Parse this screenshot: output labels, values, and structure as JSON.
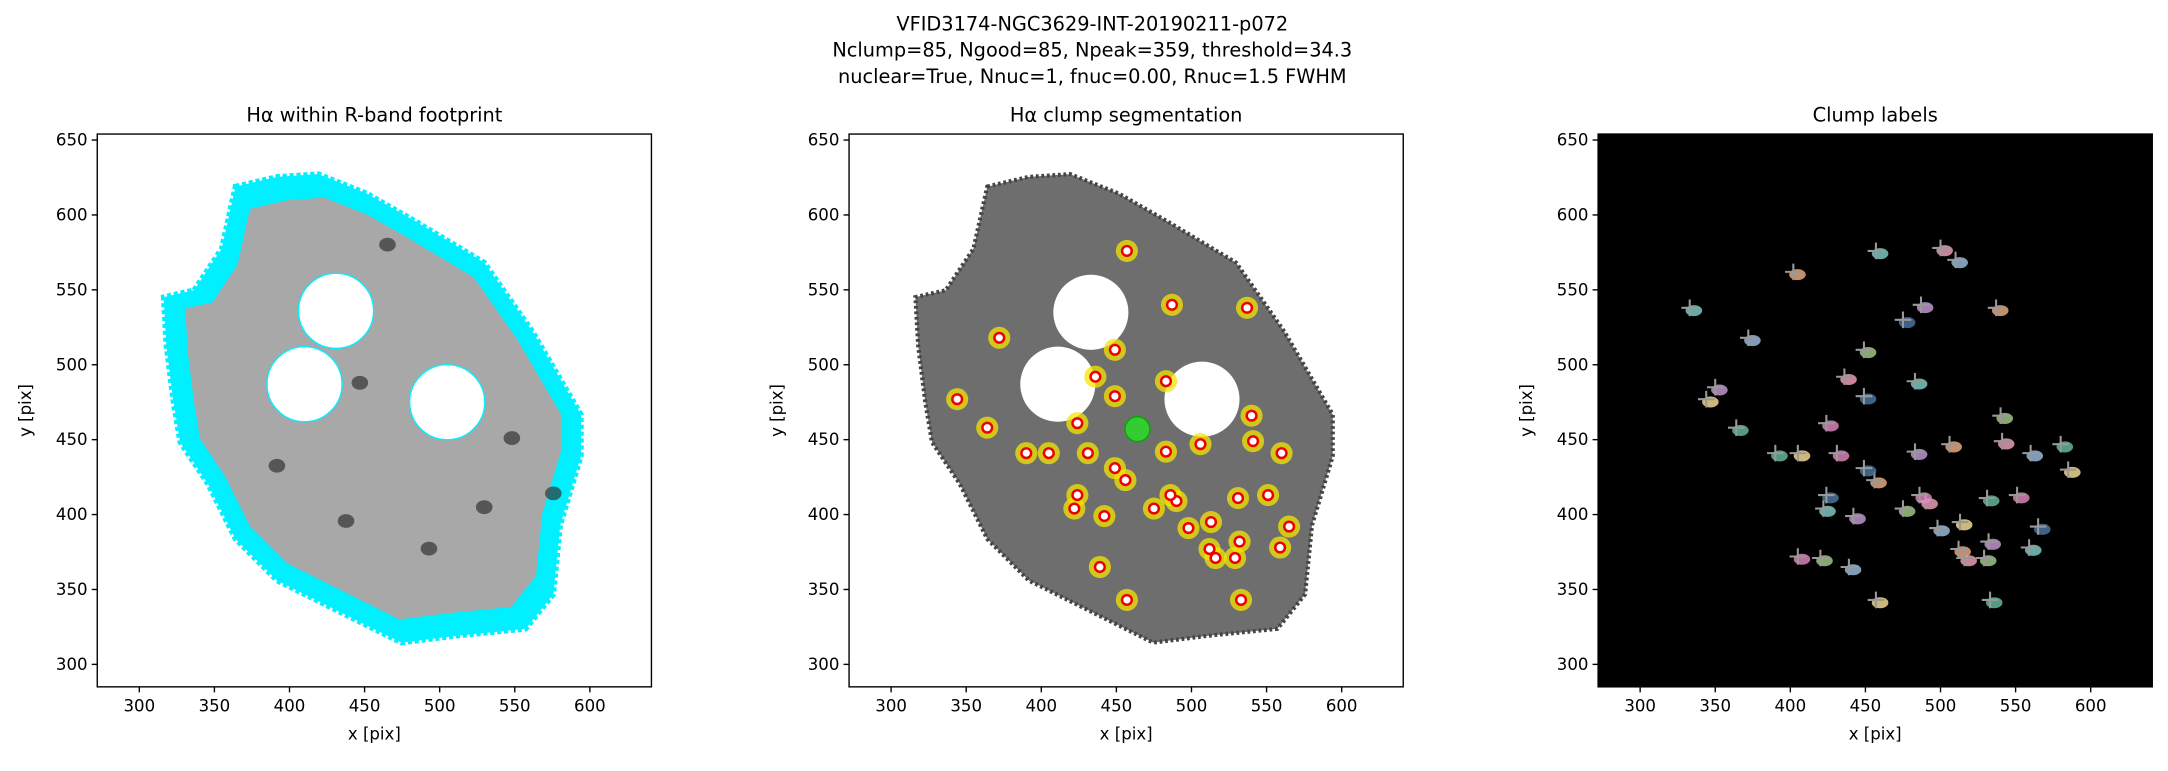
{
  "figure": {
    "title": [
      "VFID3174-NGC3629-INT-20190211-p072",
      "Nclump=85, Ngood=85, Npeak=359, threshold=34.3",
      "nuclear=True, Nnuc=1, fnuc=0.00, Rnuc=1.5 FWHM"
    ]
  },
  "chart_data": [
    {
      "type": "footprint",
      "title": "Hα within R-band footprint",
      "xlabel": "x [pix]",
      "ylabel": "y [pix]",
      "xlim": [
        272,
        641
      ],
      "ylim": [
        285,
        654
      ],
      "xticks": [
        300,
        350,
        400,
        450,
        500,
        550,
        600
      ],
      "yticks": [
        300,
        350,
        400,
        450,
        500,
        550,
        600,
        650
      ],
      "masks": {
        "x": [
          431,
          410,
          505
        ],
        "y": [
          536,
          487,
          475
        ],
        "r": [
          25,
          25,
          25
        ]
      }
    },
    {
      "type": "segmentation",
      "title": "Hα clump segmentation",
      "xlabel": "x [pix]",
      "ylabel": "y [pix]",
      "xlim": [
        272,
        641
      ],
      "ylim": [
        285,
        654
      ],
      "xticks": [
        300,
        350,
        400,
        450,
        500,
        550,
        600
      ],
      "yticks": [
        300,
        350,
        400,
        450,
        500,
        550,
        600,
        650
      ],
      "masks": {
        "x": [
          433,
          411,
          507
        ],
        "y": [
          535,
          487,
          477
        ],
        "r": [
          25,
          25,
          25
        ]
      },
      "clumps": {
        "x": [
          457,
          487,
          537,
          449,
          436,
          372,
          344,
          364,
          424,
          449,
          483,
          483,
          506,
          540,
          541,
          560,
          405,
          390,
          431,
          424,
          422,
          442,
          456,
          475,
          490,
          498,
          513,
          531,
          551,
          565,
          559,
          532,
          512,
          529,
          516,
          439,
          457,
          533,
          486,
          449
        ],
        "y": [
          576,
          540,
          538,
          510,
          492,
          518,
          477,
          458,
          461,
          479,
          489,
          442,
          447,
          466,
          449,
          441,
          441,
          441,
          441,
          413,
          404,
          399,
          423,
          404,
          409,
          391,
          395,
          411,
          413,
          392,
          378,
          382,
          377,
          371,
          371,
          365,
          343,
          343,
          413,
          431
        ]
      },
      "nucleus": {
        "x": 464,
        "y": 457
      }
    },
    {
      "type": "labels",
      "title": "Clump labels",
      "xlabel": "x [pix]",
      "ylabel": "y [pix]",
      "xlim": [
        272,
        641
      ],
      "ylim": [
        285,
        654
      ],
      "xticks": [
        300,
        350,
        400,
        450,
        500,
        550,
        600
      ],
      "yticks": [
        300,
        350,
        400,
        450,
        500,
        550,
        600,
        650
      ],
      "peaks": {
        "x": [
          457,
          487,
          537,
          449,
          436,
          372,
          344,
          364,
          424,
          449,
          483,
          483,
          506,
          540,
          541,
          560,
          405,
          390,
          431,
          424,
          422,
          442,
          456,
          475,
          490,
          498,
          513,
          531,
          551,
          565,
          559,
          532,
          512,
          529,
          516,
          439,
          457,
          533,
          486,
          449,
          333,
          350,
          402,
          420,
          500,
          510,
          585,
          580,
          405,
          475
        ],
        "y": [
          576,
          540,
          538,
          510,
          492,
          518,
          477,
          458,
          461,
          479,
          489,
          442,
          447,
          466,
          449,
          441,
          441,
          441,
          441,
          413,
          404,
          399,
          423,
          404,
          409,
          391,
          395,
          411,
          413,
          392,
          378,
          382,
          377,
          371,
          371,
          365,
          343,
          343,
          413,
          431,
          538,
          485,
          562,
          371,
          578,
          570,
          430,
          447,
          372,
          530
        ]
      },
      "colors": [
        "#7fd6cc",
        "#c9a0dc",
        "#f4b183",
        "#a9d18e",
        "#f8a5c2",
        "#9dc3e6",
        "#ffe699",
        "#66c2a5",
        "#e78ac3",
        "#4e79a7"
      ]
    }
  ]
}
